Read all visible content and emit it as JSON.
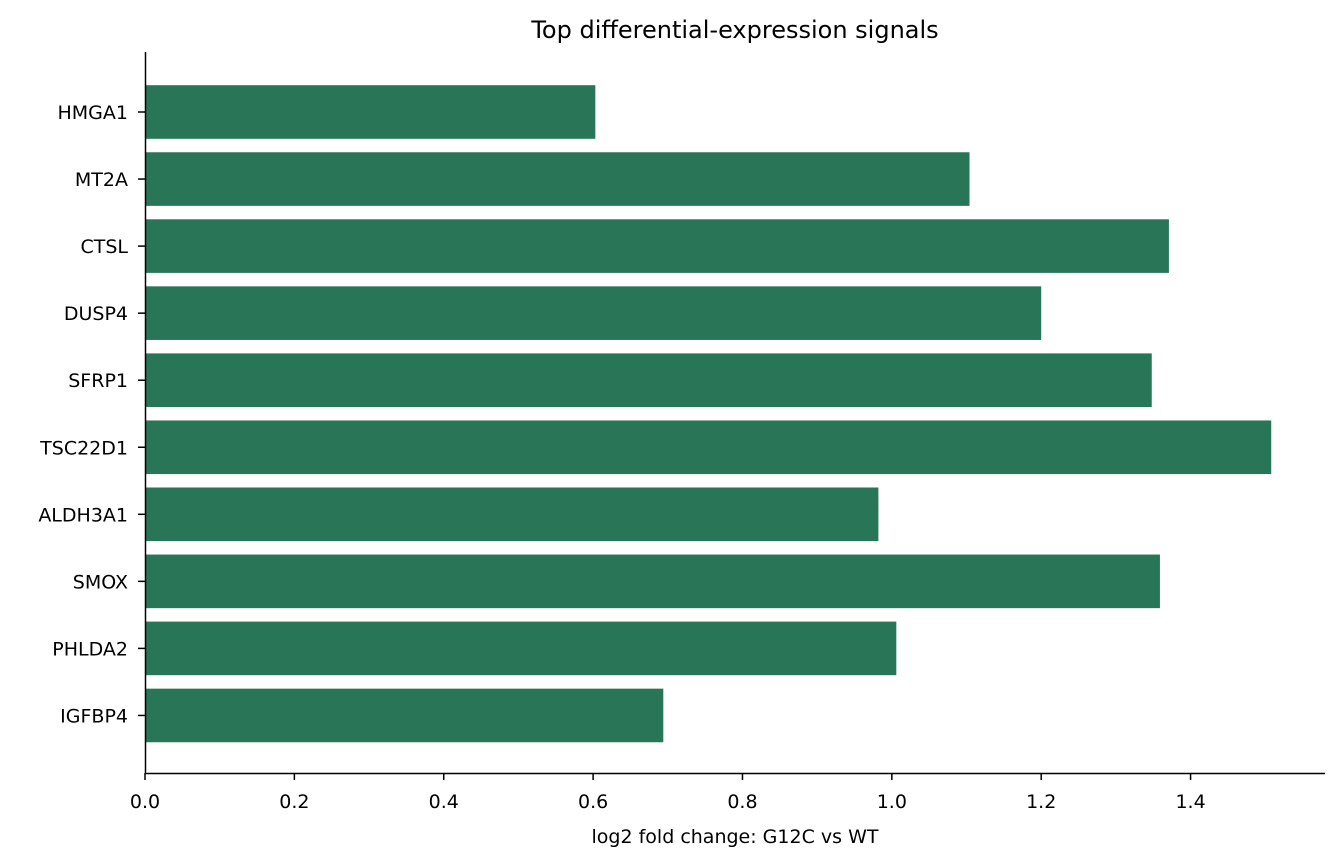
{
  "chart_data": {
    "type": "bar",
    "orientation": "horizontal",
    "title": "Top differential-expression signals",
    "xlabel": "log2 fold change: G12C vs WT",
    "ylabel": "",
    "xlim": [
      0,
      1.58
    ],
    "xticks": [
      0.0,
      0.2,
      0.4,
      0.6,
      0.8,
      1.0,
      1.2,
      1.4
    ],
    "xtick_labels": [
      "0.0",
      "0.2",
      "0.4",
      "0.6",
      "0.8",
      "1.0",
      "1.2",
      "1.4"
    ],
    "categories": [
      "HMGA1",
      "MT2A",
      "CTSL",
      "DUSP4",
      "SFRP1",
      "TSC22D1",
      "ALDH3A1",
      "SMOX",
      "PHLDA2",
      "IGFBP4"
    ],
    "values": [
      0.603,
      1.104,
      1.371,
      1.2,
      1.348,
      1.508,
      0.982,
      1.359,
      1.006,
      0.694
    ],
    "bar_color": "#287657",
    "grid": false,
    "legend": "none"
  }
}
